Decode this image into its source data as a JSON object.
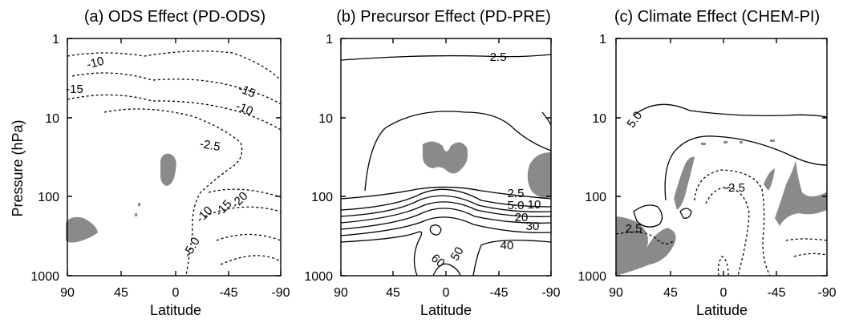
{
  "chart_data": [
    {
      "type": "contour",
      "title": "(a) ODS Effect (PD-ODS)",
      "xlabel": "Latitude",
      "ylabel": "Pressure (hPa)",
      "xlim": [
        90,
        -90
      ],
      "ylim": [
        1000,
        1
      ],
      "yscale": "log",
      "xticks": [
        "90",
        "45",
        "0",
        "-45",
        "-90"
      ],
      "yticks": [
        "1",
        "10",
        "100",
        "1000"
      ],
      "contour_labels": [
        "-10",
        "-15",
        "-15",
        "-10",
        "-2.5",
        "-10",
        "-15",
        "-20",
        "-5.0"
      ],
      "positive_contours_solid": true,
      "negative_contours_dashed": true,
      "shading": "significance (grey)"
    },
    {
      "type": "contour",
      "title": "(b) Precursor Effect (PD-PRE)",
      "xlabel": "Latitude",
      "xlim": [
        90,
        -90
      ],
      "ylim": [
        1000,
        1
      ],
      "yscale": "log",
      "xticks": [
        "90",
        "45",
        "0",
        "-45",
        "-90"
      ],
      "yticks": [
        "1",
        "10",
        "100",
        "1000"
      ],
      "contour_labels": [
        "2.5",
        "2.5",
        "5.0",
        "10",
        "20",
        "30",
        "40",
        "50",
        "60"
      ],
      "shading": "significance (grey)"
    },
    {
      "type": "contour",
      "title": "(c) Climate Effect (CHEM-PI)",
      "xlabel": "Latitude",
      "xlim": [
        90,
        -90
      ],
      "ylim": [
        1000,
        1
      ],
      "yscale": "log",
      "xticks": [
        "90",
        "45",
        "0",
        "-45",
        "-90"
      ],
      "yticks": [
        "1",
        "10",
        "100",
        "1000"
      ],
      "contour_labels": [
        "5.0",
        "-2.5",
        "2.5"
      ],
      "shading": "significance (grey)"
    }
  ]
}
